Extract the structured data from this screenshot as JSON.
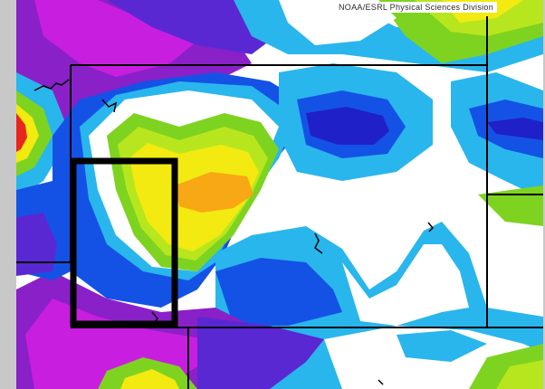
{
  "map": {
    "credit_text": "NOAA/ESRL Physical Sciences Division",
    "palette": {
      "white": "#ffffff",
      "light_blue": "#29b6ec",
      "mid_blue": "#1452e6",
      "dark_blue": "#2020c8",
      "violet": "#5a28d2",
      "purple": "#8a20c8",
      "magenta": "#c81ee0",
      "green": "#7ed321",
      "lime": "#b8e61e",
      "yellow": "#f2ea10",
      "orange": "#f7a814",
      "red": "#e8261e",
      "border": "#000000",
      "highlight_box": "#000000",
      "frame": "#c8c8c8"
    }
  }
}
